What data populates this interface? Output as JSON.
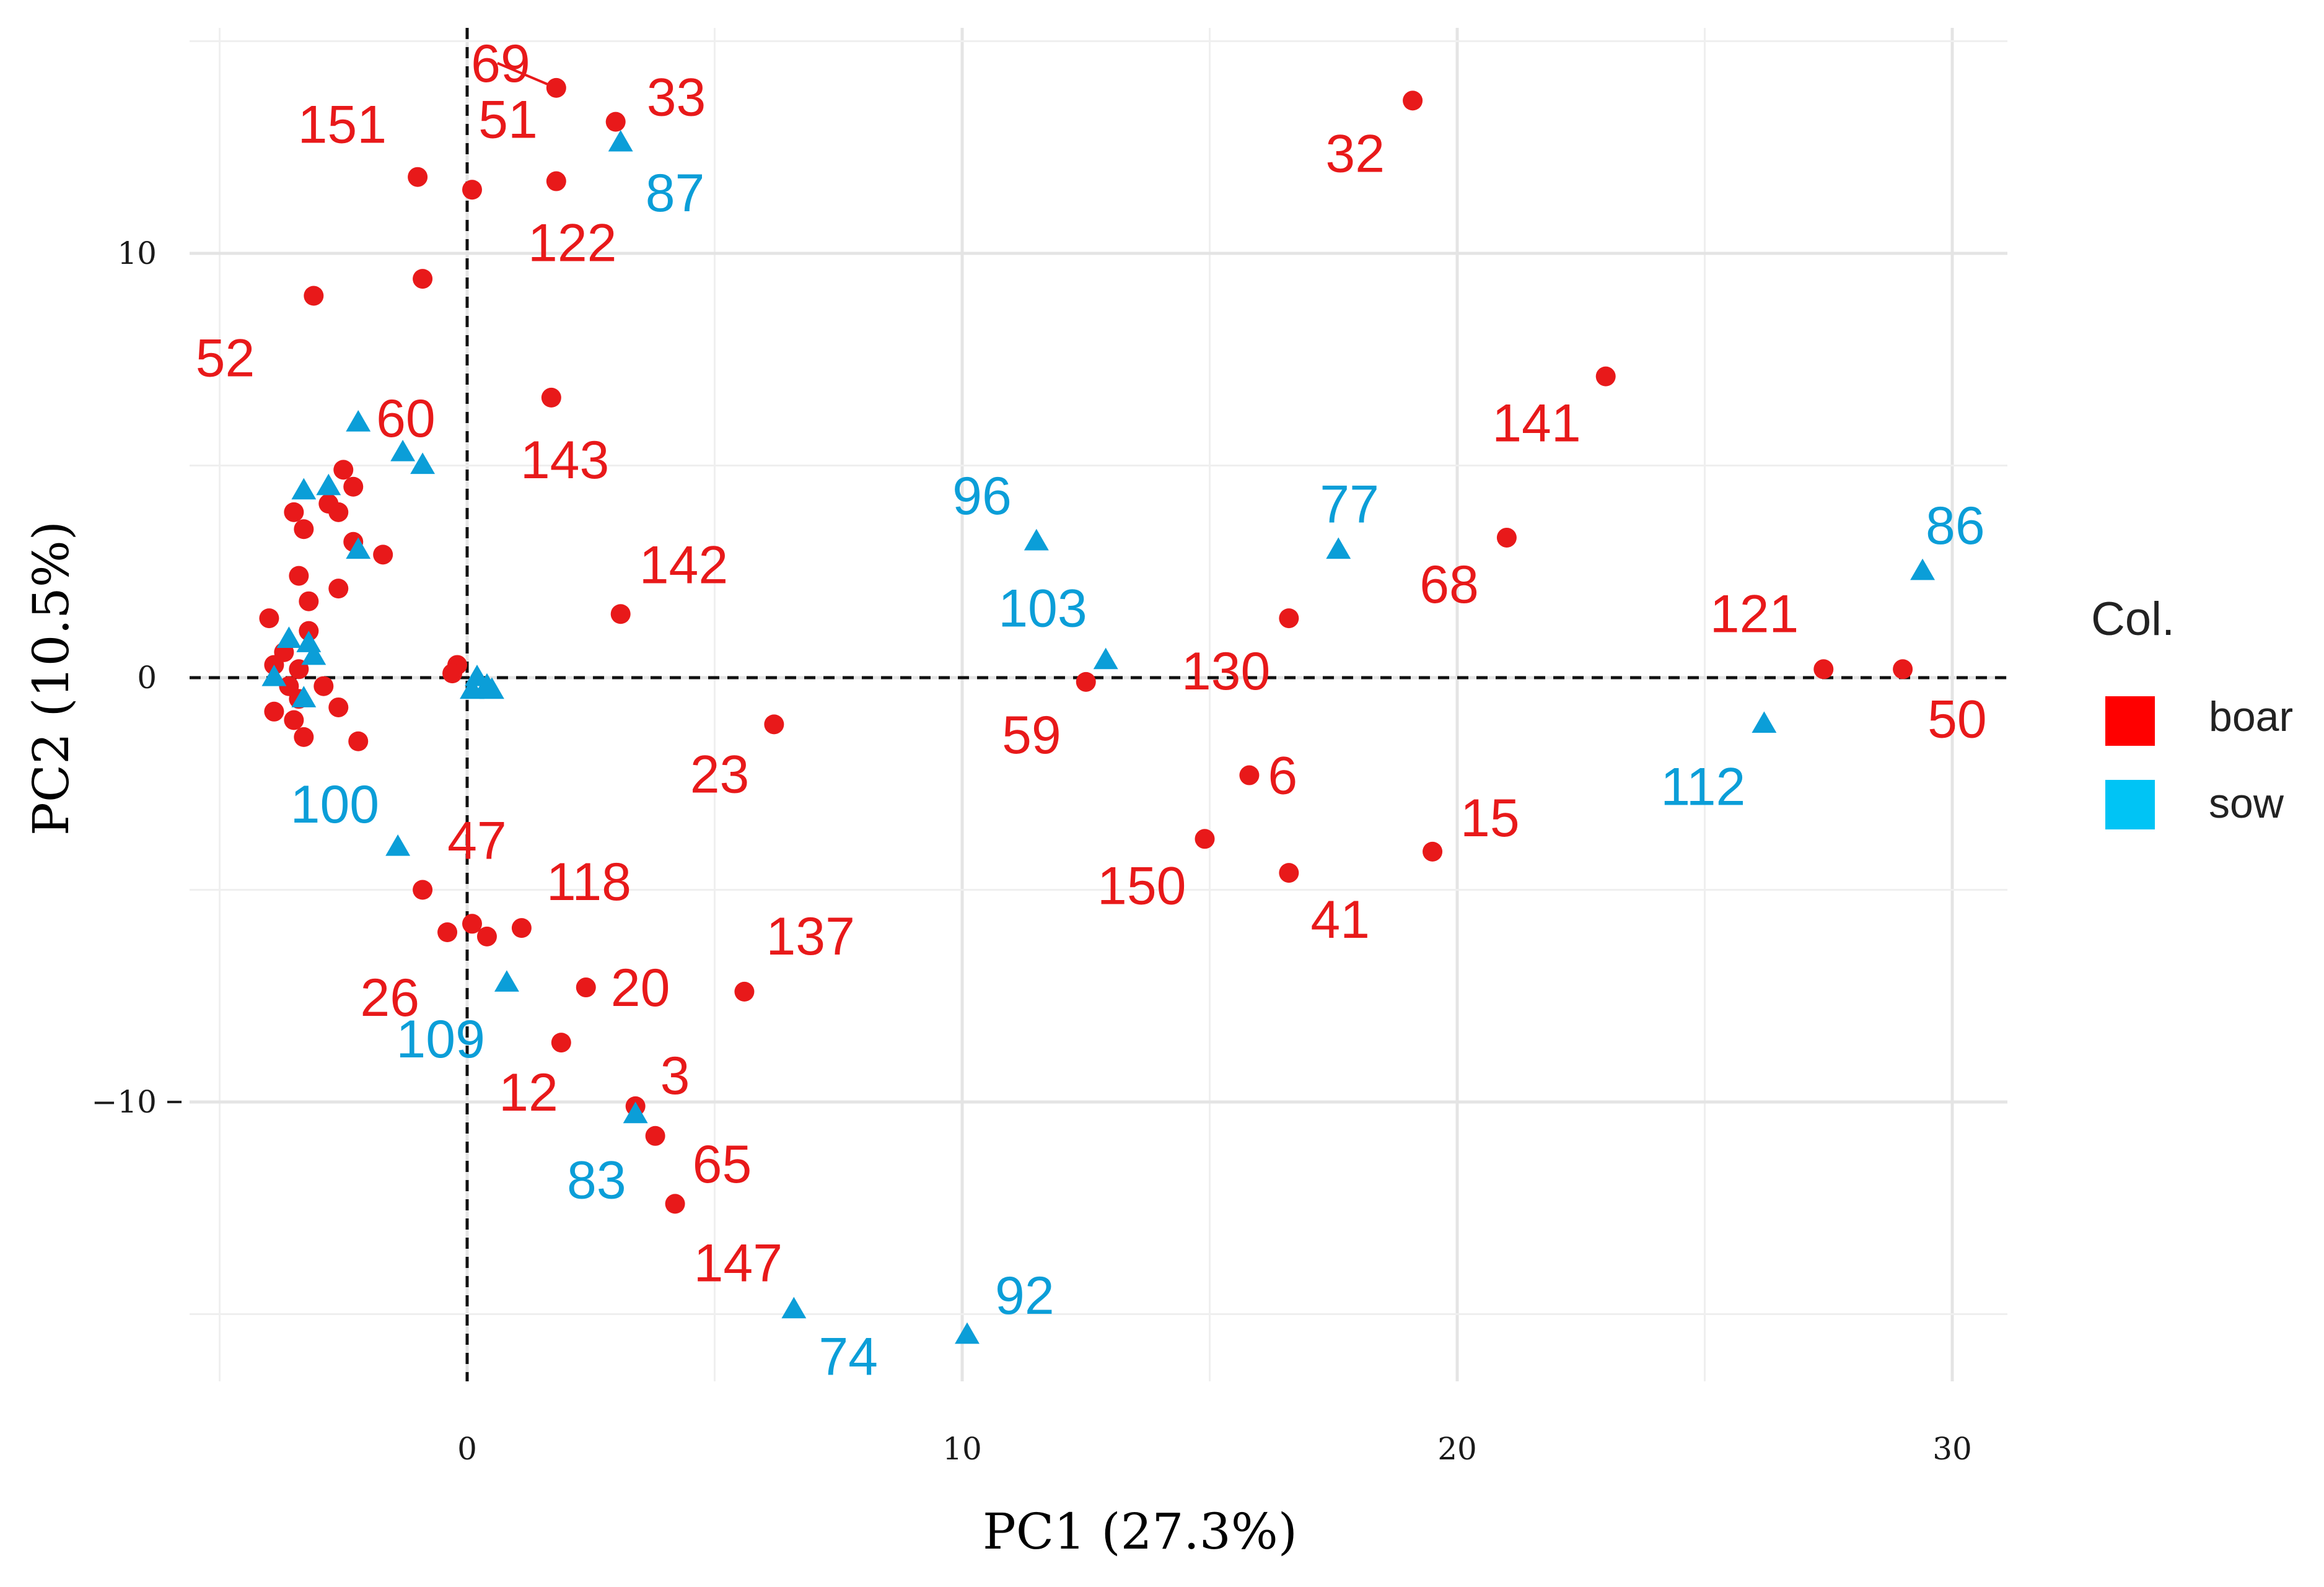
{
  "chart_data": {
    "type": "scatter",
    "xlabel": "PC1 (27.3%)",
    "ylabel": "PC2 (10.5%)",
    "xlim": [
      -5.5,
      31
    ],
    "ylim": [
      -17,
      15
    ],
    "x_ticks": [
      0,
      10,
      20,
      30
    ],
    "y_ticks": [
      -10,
      0,
      10
    ],
    "x_tick_labels": [
      "0",
      "10",
      "20",
      "30"
    ],
    "y_tick_labels": [
      "−10",
      "0",
      "10"
    ],
    "grid": true,
    "reference_lines": {
      "x": 0,
      "y": 0,
      "style": "dashed"
    },
    "legend": {
      "title": "Col.",
      "position": "right",
      "entries": [
        {
          "name": "boar",
          "color": "#e8191a"
        },
        {
          "name": "sow",
          "color": "#0b9ed8"
        }
      ]
    },
    "series": [
      {
        "name": "boar",
        "color": "#e8191a",
        "marker": "circle",
        "points": [
          {
            "x": 1.8,
            "y": 13.9,
            "label": "69"
          },
          {
            "x": 3.0,
            "y": 13.1,
            "label": "33"
          },
          {
            "x": -1.0,
            "y": 11.8,
            "label": "151"
          },
          {
            "x": 1.8,
            "y": 11.7,
            "label": "51"
          },
          {
            "x": 0.1,
            "y": 11.5,
            "label": "122"
          },
          {
            "x": -0.9,
            "y": 9.4,
            "label": "60"
          },
          {
            "x": -3.1,
            "y": 9.0,
            "label": "52"
          },
          {
            "x": 1.7,
            "y": 6.6,
            "label": "143"
          },
          {
            "x": 19.1,
            "y": 13.6,
            "label": "32"
          },
          {
            "x": 23.0,
            "y": 7.1,
            "label": "141"
          },
          {
            "x": 21.0,
            "y": 3.3,
            "label": "68"
          },
          {
            "x": 3.1,
            "y": 1.5,
            "label": "142"
          },
          {
            "x": 16.6,
            "y": 1.4,
            "label": "130"
          },
          {
            "x": 12.5,
            "y": -0.1,
            "label": "59"
          },
          {
            "x": 27.4,
            "y": 0.2,
            "label": "121"
          },
          {
            "x": 29.0,
            "y": 0.2,
            "label": "50"
          },
          {
            "x": 6.2,
            "y": -1.1,
            "label": "23"
          },
          {
            "x": 15.8,
            "y": -2.3,
            "label": "6"
          },
          {
            "x": 14.9,
            "y": -3.8,
            "label": "150"
          },
          {
            "x": 16.6,
            "y": -4.6,
            "label": "41"
          },
          {
            "x": 19.5,
            "y": -4.1,
            "label": "15"
          },
          {
            "x": -0.9,
            "y": -5.0,
            "label": "47"
          },
          {
            "x": -0.4,
            "y": -6.0,
            "label": "26"
          },
          {
            "x": 0.1,
            "y": -5.8,
            "label": ""
          },
          {
            "x": 0.4,
            "y": -6.1,
            "label": ""
          },
          {
            "x": 1.1,
            "y": -5.9,
            "label": "118"
          },
          {
            "x": 2.4,
            "y": -7.3,
            "label": "20"
          },
          {
            "x": 5.6,
            "y": -7.4,
            "label": "137"
          },
          {
            "x": 1.9,
            "y": -8.6,
            "label": "12"
          },
          {
            "x": 3.4,
            "y": -10.1,
            "label": "3"
          },
          {
            "x": 3.8,
            "y": -10.8,
            "label": "65"
          },
          {
            "x": 4.2,
            "y": -12.4,
            "label": "147"
          },
          {
            "x": -0.2,
            "y": 0.3,
            "label": ""
          },
          {
            "x": -0.3,
            "y": 0.1,
            "label": ""
          },
          {
            "x": -3.5,
            "y": 3.9,
            "label": ""
          },
          {
            "x": -2.5,
            "y": 4.9,
            "label": ""
          },
          {
            "x": -2.3,
            "y": 4.5,
            "label": ""
          },
          {
            "x": -2.8,
            "y": 4.1,
            "label": ""
          },
          {
            "x": -2.6,
            "y": 3.9,
            "label": ""
          },
          {
            "x": -3.3,
            "y": 3.5,
            "label": ""
          },
          {
            "x": -2.3,
            "y": 3.2,
            "label": ""
          },
          {
            "x": -1.7,
            "y": 2.9,
            "label": ""
          },
          {
            "x": -3.4,
            "y": 2.4,
            "label": ""
          },
          {
            "x": -2.6,
            "y": 2.1,
            "label": ""
          },
          {
            "x": -3.2,
            "y": 1.8,
            "label": ""
          },
          {
            "x": -4.0,
            "y": 1.4,
            "label": ""
          },
          {
            "x": -3.2,
            "y": 1.1,
            "label": ""
          },
          {
            "x": -3.7,
            "y": 0.6,
            "label": ""
          },
          {
            "x": -3.9,
            "y": 0.3,
            "label": ""
          },
          {
            "x": -3.4,
            "y": 0.2,
            "label": ""
          },
          {
            "x": -3.6,
            "y": -0.2,
            "label": ""
          },
          {
            "x": -2.9,
            "y": -0.2,
            "label": ""
          },
          {
            "x": -3.4,
            "y": -0.5,
            "label": ""
          },
          {
            "x": -3.9,
            "y": -0.8,
            "label": ""
          },
          {
            "x": -2.6,
            "y": -0.7,
            "label": ""
          },
          {
            "x": -3.5,
            "y": -1.0,
            "label": ""
          },
          {
            "x": -3.3,
            "y": -1.4,
            "label": ""
          },
          {
            "x": -2.2,
            "y": -1.5,
            "label": ""
          }
        ]
      },
      {
        "name": "sow",
        "color": "#0b9ed8",
        "marker": "triangle",
        "points": [
          {
            "x": 3.1,
            "y": 12.6,
            "label": "87"
          },
          {
            "x": 11.5,
            "y": 3.2,
            "label": "96"
          },
          {
            "x": 17.6,
            "y": 3.0,
            "label": "77"
          },
          {
            "x": 29.4,
            "y": 2.5,
            "label": "86"
          },
          {
            "x": 12.9,
            "y": 0.4,
            "label": "103"
          },
          {
            "x": 26.2,
            "y": -1.1,
            "label": "112"
          },
          {
            "x": -1.4,
            "y": -4.0,
            "label": "100"
          },
          {
            "x": 0.8,
            "y": -7.2,
            "label": "109"
          },
          {
            "x": 3.4,
            "y": -10.3,
            "label": "83"
          },
          {
            "x": 6.6,
            "y": -14.9,
            "label": "74"
          },
          {
            "x": 10.1,
            "y": -15.5,
            "label": "92"
          },
          {
            "x": -2.2,
            "y": 6.0,
            "label": ""
          },
          {
            "x": -1.3,
            "y": 5.3,
            "label": ""
          },
          {
            "x": -0.9,
            "y": 5.0,
            "label": ""
          },
          {
            "x": -3.3,
            "y": 4.4,
            "label": ""
          },
          {
            "x": -2.8,
            "y": 4.5,
            "label": ""
          },
          {
            "x": -2.2,
            "y": 3.0,
            "label": ""
          },
          {
            "x": -3.2,
            "y": 0.8,
            "label": ""
          },
          {
            "x": -3.6,
            "y": 0.9,
            "label": ""
          },
          {
            "x": -3.1,
            "y": 0.5,
            "label": ""
          },
          {
            "x": -3.9,
            "y": 0.0,
            "label": ""
          },
          {
            "x": -3.3,
            "y": -0.5,
            "label": ""
          },
          {
            "x": 0.2,
            "y": 0.0,
            "label": ""
          },
          {
            "x": 0.4,
            "y": -0.2,
            "label": ""
          },
          {
            "x": 0.5,
            "y": -0.3,
            "label": ""
          },
          {
            "x": 0.1,
            "y": -0.3,
            "label": ""
          }
        ]
      }
    ]
  }
}
